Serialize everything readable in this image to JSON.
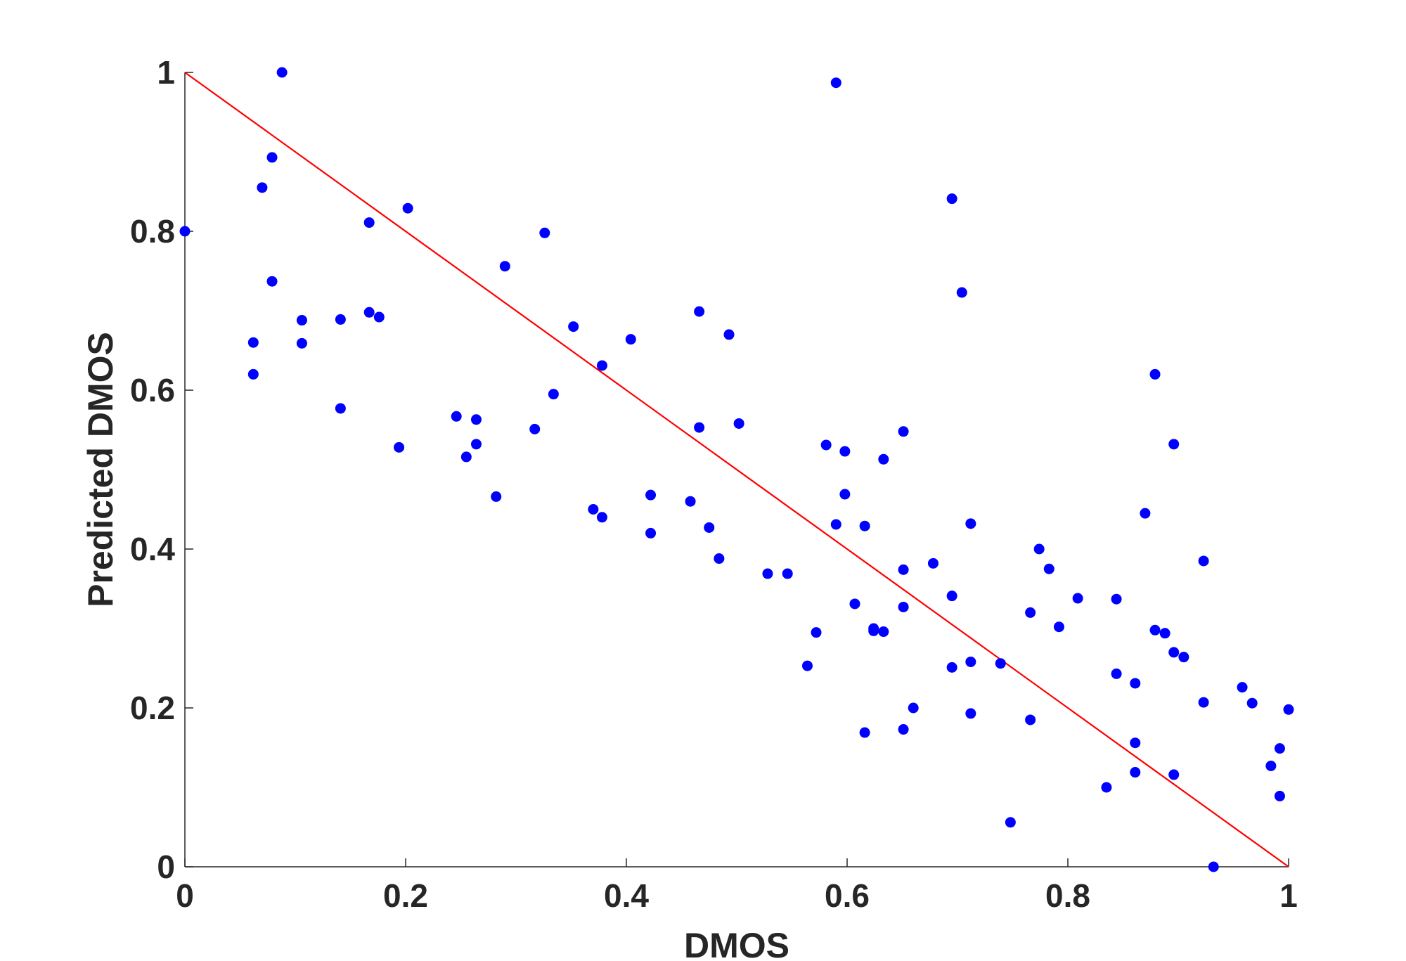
{
  "chart_data": {
    "type": "scatter",
    "title": "",
    "xlabel": "DMOS",
    "ylabel": "Predicted DMOS",
    "xlim": [
      0,
      1
    ],
    "ylim": [
      0,
      1
    ],
    "xticks": [
      "0",
      "0.2",
      "0.4",
      "0.6",
      "0.8",
      "1"
    ],
    "yticks": [
      "0",
      "0.2",
      "0.4",
      "0.6",
      "0.8",
      "1"
    ],
    "grid": false,
    "legend": "none",
    "point_color": "#0000ff",
    "reference_line": {
      "color": "#ff0000",
      "points": [
        [
          0,
          1
        ],
        [
          1,
          0
        ]
      ]
    },
    "points": [
      [
        0.0,
        0.8
      ],
      [
        0.062,
        0.66
      ],
      [
        0.062,
        0.62
      ],
      [
        0.07,
        0.855
      ],
      [
        0.079,
        0.893
      ],
      [
        0.079,
        0.737
      ],
      [
        0.088,
        1.0
      ],
      [
        0.106,
        0.688
      ],
      [
        0.106,
        0.659
      ],
      [
        0.141,
        0.689
      ],
      [
        0.141,
        0.577
      ],
      [
        0.167,
        0.811
      ],
      [
        0.167,
        0.698
      ],
      [
        0.176,
        0.692
      ],
      [
        0.194,
        0.528
      ],
      [
        0.202,
        0.829
      ],
      [
        0.246,
        0.567
      ],
      [
        0.255,
        0.516
      ],
      [
        0.264,
        0.563
      ],
      [
        0.264,
        0.532
      ],
      [
        0.282,
        0.466
      ],
      [
        0.29,
        0.756
      ],
      [
        0.317,
        0.551
      ],
      [
        0.326,
        0.798
      ],
      [
        0.334,
        0.595
      ],
      [
        0.352,
        0.68
      ],
      [
        0.37,
        0.45
      ],
      [
        0.378,
        0.631
      ],
      [
        0.378,
        0.44
      ],
      [
        0.404,
        0.664
      ],
      [
        0.422,
        0.468
      ],
      [
        0.422,
        0.42
      ],
      [
        0.458,
        0.46
      ],
      [
        0.466,
        0.699
      ],
      [
        0.466,
        0.553
      ],
      [
        0.475,
        0.427
      ],
      [
        0.484,
        0.388
      ],
      [
        0.493,
        0.67
      ],
      [
        0.502,
        0.558
      ],
      [
        0.528,
        0.369
      ],
      [
        0.546,
        0.369
      ],
      [
        0.564,
        0.253
      ],
      [
        0.572,
        0.295
      ],
      [
        0.581,
        0.531
      ],
      [
        0.59,
        0.987
      ],
      [
        0.59,
        0.431
      ],
      [
        0.598,
        0.523
      ],
      [
        0.598,
        0.469
      ],
      [
        0.607,
        0.331
      ],
      [
        0.616,
        0.429
      ],
      [
        0.616,
        0.169
      ],
      [
        0.624,
        0.3
      ],
      [
        0.624,
        0.297
      ],
      [
        0.633,
        0.513
      ],
      [
        0.633,
        0.296
      ],
      [
        0.651,
        0.548
      ],
      [
        0.651,
        0.374
      ],
      [
        0.651,
        0.327
      ],
      [
        0.651,
        0.173
      ],
      [
        0.66,
        0.2
      ],
      [
        0.678,
        0.382
      ],
      [
        0.695,
        0.841
      ],
      [
        0.695,
        0.341
      ],
      [
        0.695,
        0.251
      ],
      [
        0.704,
        0.723
      ],
      [
        0.712,
        0.432
      ],
      [
        0.712,
        0.258
      ],
      [
        0.712,
        0.193
      ],
      [
        0.739,
        0.256
      ],
      [
        0.748,
        0.056
      ],
      [
        0.766,
        0.32
      ],
      [
        0.766,
        0.185
      ],
      [
        0.774,
        0.4
      ],
      [
        0.783,
        0.375
      ],
      [
        0.792,
        0.302
      ],
      [
        0.809,
        0.338
      ],
      [
        0.835,
        0.1
      ],
      [
        0.844,
        0.337
      ],
      [
        0.844,
        0.243
      ],
      [
        0.861,
        0.231
      ],
      [
        0.861,
        0.156
      ],
      [
        0.861,
        0.119
      ],
      [
        0.87,
        0.445
      ],
      [
        0.879,
        0.62
      ],
      [
        0.879,
        0.298
      ],
      [
        0.888,
        0.294
      ],
      [
        0.896,
        0.532
      ],
      [
        0.896,
        0.27
      ],
      [
        0.896,
        0.116
      ],
      [
        0.905,
        0.264
      ],
      [
        0.923,
        0.385
      ],
      [
        0.923,
        0.207
      ],
      [
        0.932,
        0.0
      ],
      [
        0.958,
        0.226
      ],
      [
        0.967,
        0.206
      ],
      [
        0.984,
        0.127
      ],
      [
        0.992,
        0.149
      ],
      [
        0.992,
        0.089
      ],
      [
        1.0,
        0.198
      ]
    ]
  }
}
